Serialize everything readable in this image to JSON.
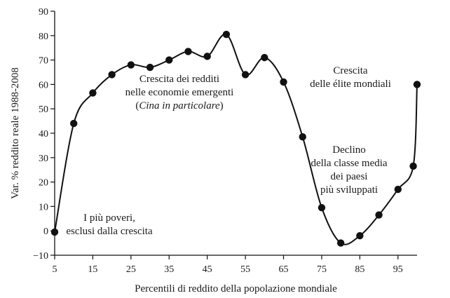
{
  "chart_data": {
    "type": "line",
    "title": "",
    "xlabel": "Percentili di reddito della popolazione mondiale",
    "ylabel": "Var. % reddito reale 1988-2008",
    "xlim": [
      5,
      100
    ],
    "ylim": [
      -10,
      90
    ],
    "xticks": [
      5,
      15,
      25,
      35,
      45,
      55,
      65,
      75,
      85,
      95
    ],
    "yticks": [
      -10,
      0,
      10,
      20,
      30,
      40,
      50,
      60,
      70,
      80,
      90
    ],
    "xtick_labels": [
      "5",
      "15",
      "25",
      "35",
      "45",
      "55",
      "65",
      "75",
      "85",
      "95"
    ],
    "ytick_labels": [
      "−10",
      "0",
      "10",
      "20",
      "30",
      "40",
      "50",
      "60",
      "70",
      "80",
      "90"
    ],
    "grid": false,
    "x": [
      5,
      10,
      15,
      20,
      25,
      30,
      35,
      40,
      45,
      50,
      55,
      60,
      65,
      70,
      75,
      80,
      85,
      90,
      95,
      99,
      100
    ],
    "y": [
      -0.5,
      44,
      56.5,
      64,
      68,
      67,
      70,
      73.5,
      71.5,
      80.5,
      64,
      71,
      61,
      38.5,
      9.5,
      -5,
      -2,
      6.5,
      17,
      26.5,
      60
    ],
    "annotations": [
      {
        "id": "poorest",
        "lines": [
          "I più poveri,",
          "esclusi dalla crescita"
        ]
      },
      {
        "id": "emerging",
        "lines": [
          "Crescita dei redditi",
          "nelle economie emergenti",
          "(Cina in particolare)"
        ]
      },
      {
        "id": "elite",
        "lines": [
          "Crescita",
          "delle élite mondiali"
        ]
      },
      {
        "id": "middle",
        "lines": [
          "Declino",
          "della classe media",
          "dei paesi",
          "più sviluppati"
        ]
      }
    ]
  }
}
